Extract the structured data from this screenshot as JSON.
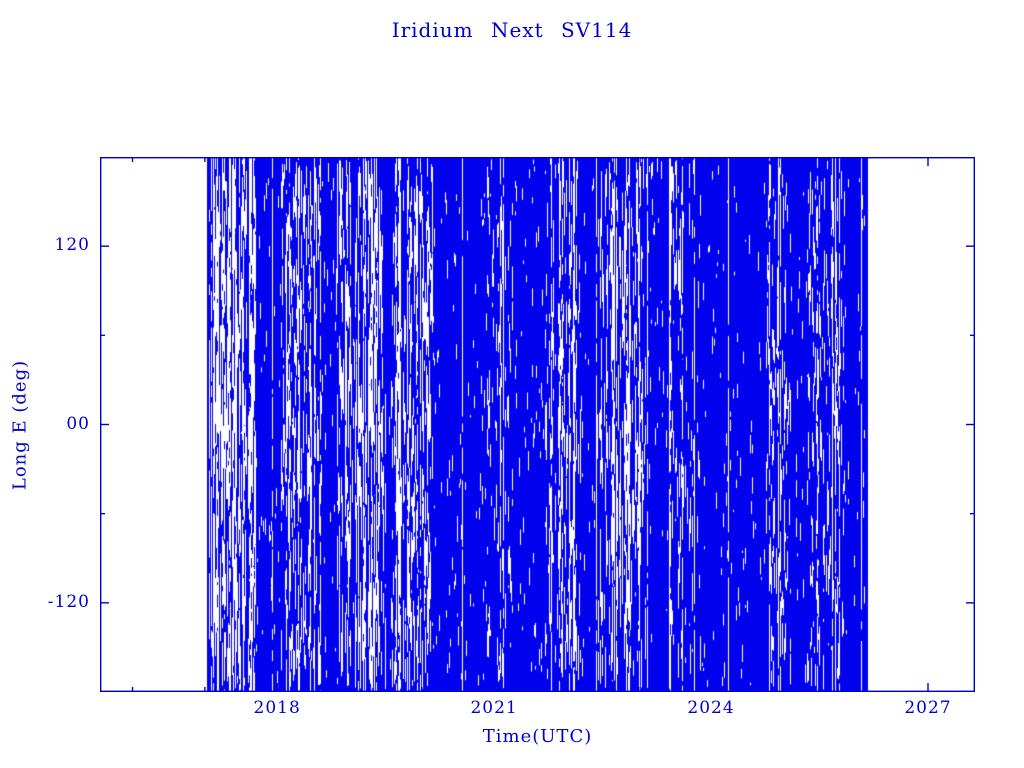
{
  "chart_data": {
    "type": "scatter",
    "title": "Iridium Next SV114",
    "xlabel": "Time(UTC)",
    "ylabel": "Long E (deg)",
    "xlim": [
      2015.55,
      2027.65
    ],
    "ylim": [
      -180,
      180
    ],
    "x_major_ticks": [
      {
        "value": 2018,
        "label": "2018"
      },
      {
        "value": 2021,
        "label": "2021"
      },
      {
        "value": 2024,
        "label": "2024"
      },
      {
        "value": 2027,
        "label": "2027"
      }
    ],
    "x_minor_step": 1,
    "y_major_ticks": [
      {
        "value": 120,
        "label": "120"
      },
      {
        "value": 0,
        "label": "00"
      },
      {
        "value": -120,
        "label": "-120"
      }
    ],
    "y_minor_step": 60,
    "grid": false,
    "legend": null,
    "frame_color": "#0000cd",
    "text_color": "#0000cd",
    "background": "#ffffff",
    "series": [
      {
        "name": "sub-satellite longitude trace",
        "description": "dense vertical striations of sub-satellite point longitude covering the full -180 to 180 deg range for every epoch between mission start and end of plotted data",
        "color": "#0202ee",
        "x_start": 2017.03,
        "x_end": 2026.16,
        "y_min": -180,
        "y_max": 180,
        "base_gap": 0.12,
        "light_bands": [
          {
            "x0": 2017.0,
            "x1": 2017.7,
            "strength": 0.7
          },
          {
            "x0": 2018.05,
            "x1": 2018.6,
            "strength": 0.35
          },
          {
            "x0": 2018.8,
            "x1": 2019.5,
            "strength": 0.6
          },
          {
            "x0": 2019.55,
            "x1": 2020.15,
            "strength": 0.45
          },
          {
            "x0": 2020.9,
            "x1": 2021.25,
            "strength": 0.2
          },
          {
            "x0": 2021.7,
            "x1": 2022.2,
            "strength": 0.35
          },
          {
            "x0": 2022.4,
            "x1": 2023.1,
            "strength": 0.45
          },
          {
            "x0": 2023.4,
            "x1": 2023.85,
            "strength": 0.3
          },
          {
            "x0": 2024.75,
            "x1": 2025.1,
            "strength": 0.25
          },
          {
            "x0": 2025.3,
            "x1": 2025.85,
            "strength": 0.25
          }
        ]
      }
    ]
  }
}
